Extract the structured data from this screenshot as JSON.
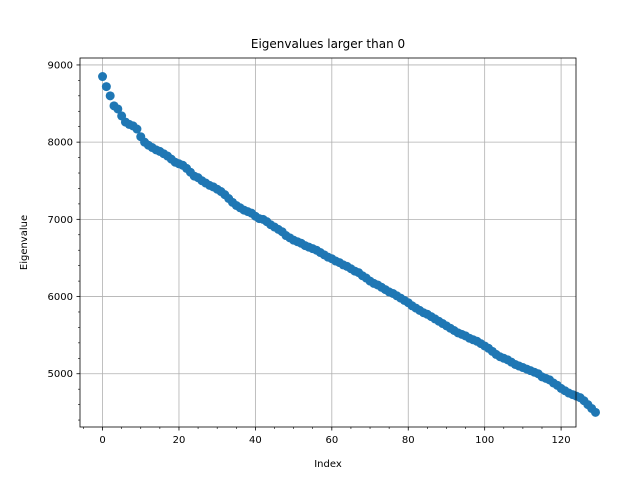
{
  "chart_data": {
    "type": "scatter",
    "title": "Eigenvalues larger than 0",
    "xlabel": "Index",
    "ylabel": "Eigenvalue",
    "xlim": [
      -5.9,
      123.9
    ],
    "ylim": [
      4310,
      9090
    ],
    "xticks": [
      0,
      20,
      40,
      60,
      80,
      100,
      120
    ],
    "yticks": [
      5000,
      6000,
      7000,
      8000,
      9000
    ],
    "grid": true,
    "marker_color": "#1f77b4",
    "x_start": 0,
    "values": [
      8850,
      8720,
      8600,
      8470,
      8430,
      8340,
      8260,
      8230,
      8210,
      8170,
      8070,
      8000,
      7960,
      7930,
      7900,
      7880,
      7850,
      7820,
      7780,
      7740,
      7720,
      7700,
      7660,
      7610,
      7560,
      7540,
      7500,
      7470,
      7440,
      7420,
      7390,
      7360,
      7320,
      7270,
      7220,
      7180,
      7150,
      7120,
      7100,
      7080,
      7040,
      7010,
      7000,
      6970,
      6930,
      6900,
      6870,
      6840,
      6790,
      6760,
      6730,
      6710,
      6690,
      6660,
      6640,
      6620,
      6600,
      6570,
      6540,
      6510,
      6490,
      6460,
      6440,
      6410,
      6390,
      6360,
      6330,
      6310,
      6270,
      6240,
      6200,
      6170,
      6150,
      6120,
      6090,
      6060,
      6040,
      6010,
      5980,
      5950,
      5920,
      5880,
      5850,
      5820,
      5790,
      5770,
      5740,
      5710,
      5680,
      5650,
      5620,
      5590,
      5560,
      5530,
      5510,
      5490,
      5460,
      5440,
      5420,
      5390,
      5360,
      5330,
      5290,
      5250,
      5220,
      5200,
      5180,
      5150,
      5120,
      5100,
      5080,
      5060,
      5040,
      5020,
      5000,
      4960,
      4940,
      4920,
      4880,
      4850,
      4810,
      4780,
      4750,
      4730,
      4710,
      4690,
      4650,
      4600,
      4550,
      4500
    ]
  }
}
